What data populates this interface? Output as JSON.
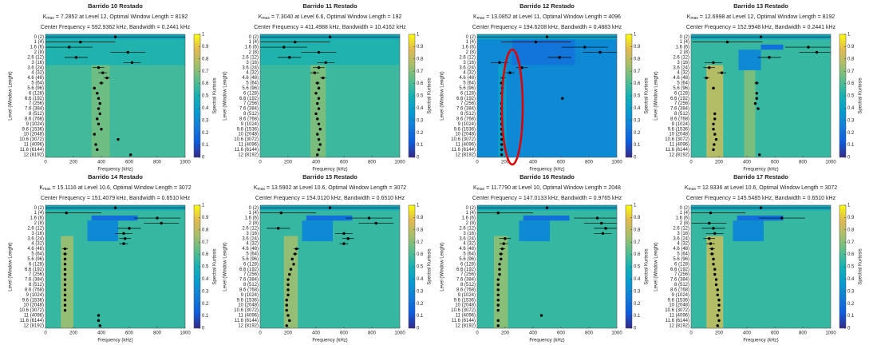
{
  "axes": {
    "xlim": [
      0,
      1000
    ],
    "xticks": [
      0,
      200,
      400,
      600,
      800,
      1000
    ],
    "xlabel": "Frequency (kHz)",
    "ylabel": "Level (Window Lenght)",
    "levels": [
      "0 (2)",
      "1 (4)",
      "1.6 (6)",
      "2 (8)",
      "2.6 (12)",
      "3 (16)",
      "3.6 (24)",
      "4 (32)",
      "4.6 (48)",
      "5 (64)",
      "5.6 (96)",
      "6 (128)",
      "6.6 (192)",
      "7 (256)",
      "7.6 (384)",
      "8 (512)",
      "8.6 (768)",
      "9 (1024)",
      "9.6 (1536)",
      "10 (2048)",
      "10.6 (3072)",
      "11 (4096)",
      "11.6 (6144)",
      "12 (8192)"
    ],
    "clim": [
      0,
      1
    ],
    "cticks": [
      0,
      0.1,
      0.2,
      0.3,
      0.4,
      0.5,
      0.6,
      0.7,
      0.8,
      0.9,
      1
    ],
    "clabel": "Spectral Kurtosis",
    "k_symbol": "K",
    "k_sub": "max",
    "halfwidths": [
      500,
      250,
      166.7,
      125,
      83.3,
      62.5,
      41.7,
      31.25,
      20.8,
      15.6,
      10.4,
      7.8,
      5.2,
      3.9,
      2.6,
      1.95,
      1.3,
      0.98,
      0.65,
      0.49,
      0.33,
      0.24,
      0.16,
      0.12
    ]
  },
  "chart_data": [
    {
      "type": "kurtogram",
      "title": "Barrido 10 Restado",
      "kmax_line": "= 7.2852 at Level 12, Optimal Window Length = 8192",
      "info_line": "Center Frequency = 592.9362 kHz, Bandwidth = 0.2441 kHz",
      "base": 0.58,
      "blocks": [
        {
          "levels": [
            0,
            0
          ],
          "freq": [
            0,
            1000
          ],
          "value": 0.45
        },
        {
          "levels": [
            1,
            5
          ],
          "freq": [
            0,
            1000
          ],
          "value": 0.52
        },
        {
          "levels": [
            6,
            23
          ],
          "freq": [
            330,
            460
          ],
          "value": 0.66
        }
      ],
      "series": [
        {
          "color": "#000000",
          "values": [
            500,
            250,
            170,
            590,
            220,
            620,
            380,
            410,
            440,
            400,
            350,
            370,
            380,
            390,
            380,
            390,
            370,
            380,
            400,
            350,
            520,
            360,
            370,
            610
          ]
        }
      ]
    },
    {
      "type": "kurtogram",
      "title": "Barrido 11 Restado",
      "kmax_line": "= 7.3040 at Level 6.6, Optimal Window Length = 192",
      "info_line": "Center Frequency = 411.4988 kHz, Bandwidth = 10.4162 kHz",
      "base": 0.57,
      "blocks": [
        {
          "levels": [
            0,
            0
          ],
          "freq": [
            0,
            1000
          ],
          "value": 0.45
        },
        {
          "levels": [
            1,
            5
          ],
          "freq": [
            0,
            1000
          ],
          "value": 0.52
        },
        {
          "levels": [
            6,
            23
          ],
          "freq": [
            360,
            470
          ],
          "value": 0.68
        }
      ],
      "series": [
        {
          "color": "#000000",
          "values": [
            500,
            250,
            170,
            420,
            210,
            470,
            420,
            390,
            450,
            410,
            420,
            400,
            420,
            410,
            420,
            400,
            410,
            420,
            430,
            410,
            420,
            430,
            420,
            410
          ]
        }
      ]
    },
    {
      "type": "kurtogram",
      "title": "Barrido 12 Restado",
      "kmax_line": "= 13.0852 at Level 11, Optimal Window Length = 4096",
      "info_line": "Center Frequency = 194.6208 kHz, Bandwidth = 0.4883 kHz",
      "base": 0.3,
      "blocks": [
        {
          "levels": [
            0,
            0
          ],
          "freq": [
            0,
            1000
          ],
          "value": 0.42
        },
        {
          "levels": [
            1,
            5
          ],
          "freq": [
            250,
            700
          ],
          "value": 0.22
        },
        {
          "levels": [
            6,
            23
          ],
          "freq": [
            150,
            210
          ],
          "value": 0.4
        }
      ],
      "series": [
        {
          "color": "#000000",
          "values": [
            500,
            420,
            770,
            880,
            590,
            160,
            320,
            235,
            185,
            175,
            180,
            175,
            610,
            175,
            175,
            175,
            175,
            175,
            175,
            175,
            175,
            175,
            175,
            175
          ]
        }
      ]
    },
    {
      "type": "kurtogram",
      "title": "Barrido 13 Restado",
      "kmax_line": "= 12.6998 at Level 12, Optimal Window Length = 8192",
      "info_line": "Center Frequency = 152.9948 kHz, Bandwidth = 0.2441 kHz",
      "base": 0.56,
      "blocks": [
        {
          "levels": [
            0,
            0
          ],
          "freq": [
            0,
            1000
          ],
          "value": 0.45
        },
        {
          "levels": [
            2,
            2
          ],
          "freq": [
            500,
            660
          ],
          "value": 0.2
        },
        {
          "levels": [
            3,
            6
          ],
          "freq": [
            340,
            500
          ],
          "value": 0.3
        },
        {
          "levels": [
            6,
            23
          ],
          "freq": [
            110,
            230
          ],
          "value": 0.78
        },
        {
          "levels": [
            7,
            23
          ],
          "freq": [
            380,
            460
          ],
          "value": 0.68
        }
      ],
      "series": [
        {
          "color": "#000000",
          "values": [
            500,
            260,
            840,
            900,
            560,
            160,
            130,
            220,
            110,
            470,
            160,
            470,
            470,
            460,
            480,
            170,
            170,
            160,
            160,
            170,
            180,
            165,
            160,
            490
          ]
        }
      ]
    },
    {
      "type": "kurtogram",
      "title": "Barrido 14 Restado",
      "kmax_line": "= 15.1116 at Level 10.6, Optimal Window Length = 3072",
      "info_line": "Center Frequency = 151.4079 kHz, Bandwidth = 0.6510 kHz",
      "base": 0.56,
      "blocks": [
        {
          "levels": [
            0,
            0
          ],
          "freq": [
            0,
            1000
          ],
          "value": 0.45
        },
        {
          "levels": [
            2,
            2
          ],
          "freq": [
            330,
            660
          ],
          "value": 0.2
        },
        {
          "levels": [
            3,
            6
          ],
          "freq": [
            300,
            520
          ],
          "value": 0.3
        },
        {
          "levels": [
            6,
            23
          ],
          "freq": [
            110,
            200
          ],
          "value": 0.72
        }
      ],
      "series": [
        {
          "color": "#000000",
          "values": [
            500,
            150,
            800,
            830,
            600,
            560,
            570,
            560,
            140,
            140,
            140,
            140,
            140,
            140,
            140,
            140,
            140,
            140,
            140,
            140,
            140,
            380,
            380,
            390
          ]
        }
      ]
    },
    {
      "type": "kurtogram",
      "title": "Barrido 15 Restado",
      "kmax_line": "= 13.5902 at Level 10.6, Optimal Window Length = 3072",
      "info_line": "Center Frequency = 154.0120 kHz, Bandwidth = 0.6510 kHz",
      "base": 0.56,
      "blocks": [
        {
          "levels": [
            0,
            0
          ],
          "freq": [
            0,
            1000
          ],
          "value": 0.45
        },
        {
          "levels": [
            2,
            2
          ],
          "freq": [
            330,
            660
          ],
          "value": 0.2
        },
        {
          "levels": [
            3,
            6
          ],
          "freq": [
            300,
            520
          ],
          "value": 0.3
        },
        {
          "levels": [
            6,
            23
          ],
          "freq": [
            170,
            270
          ],
          "value": 0.72
        }
      ],
      "series": [
        {
          "color": "#000000",
          "values": [
            500,
            150,
            780,
            830,
            130,
            600,
            630,
            600,
            260,
            250,
            230,
            240,
            220,
            210,
            200,
            200,
            200,
            200,
            190,
            190,
            190,
            200,
            210,
            190
          ]
        }
      ]
    },
    {
      "type": "kurtogram",
      "title": "Barrido 16 Restado",
      "kmax_line": "= 11.7790 at Level 10, Optimal Window Length = 2048",
      "info_line": "Center Frequency = 147.0133 kHz, Bandwidth = 0.9765 kHz",
      "base": 0.56,
      "blocks": [
        {
          "levels": [
            0,
            0
          ],
          "freq": [
            0,
            1000
          ],
          "value": 0.45
        },
        {
          "levels": [
            2,
            2
          ],
          "freq": [
            330,
            660
          ],
          "value": 0.2
        },
        {
          "levels": [
            3,
            6
          ],
          "freq": [
            300,
            520
          ],
          "value": 0.3
        },
        {
          "levels": [
            6,
            23
          ],
          "freq": [
            120,
            220
          ],
          "value": 0.7
        }
      ],
      "series": [
        {
          "color": "#000000",
          "values": [
            500,
            150,
            860,
            890,
            920,
            900,
            200,
            190,
            180,
            170,
            170,
            160,
            160,
            160,
            150,
            150,
            150,
            150,
            150,
            150,
            150,
            460,
            150,
            150
          ]
        }
      ]
    },
    {
      "type": "kurtogram",
      "title": "Barrido 17 Restado",
      "kmax_line": "= 12.9336 at Level 10.6, Optimal Window Length = 3072",
      "info_line": "Center Frequency = 145.5485 kHz, Bandwidth = 0.6510 kHz",
      "base": 0.56,
      "blocks": [
        {
          "levels": [
            0,
            0
          ],
          "freq": [
            0,
            1000
          ],
          "value": 0.45
        },
        {
          "levels": [
            2,
            2
          ],
          "freq": [
            330,
            660
          ],
          "value": 0.2
        },
        {
          "levels": [
            3,
            6
          ],
          "freq": [
            300,
            520
          ],
          "value": 0.3
        },
        {
          "levels": [
            6,
            23
          ],
          "freq": [
            110,
            230
          ],
          "value": 0.78
        }
      ],
      "series": [
        {
          "color": "#000000",
          "values": [
            500,
            140,
            650,
            130,
            160,
            170,
            130,
            140,
            150,
            150,
            160,
            160,
            170,
            170,
            180,
            180,
            190,
            190,
            200,
            200,
            200,
            190,
            200,
            190
          ]
        }
      ]
    }
  ]
}
